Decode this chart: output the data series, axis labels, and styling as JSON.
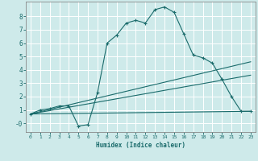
{
  "xlabel": "Humidex (Indice chaleur)",
  "background_color": "#ceeaea",
  "grid_color": "#ffffff",
  "line_color": "#1a6b6b",
  "xlim": [
    -0.5,
    23.5
  ],
  "ylim": [
    -0.65,
    9.1
  ],
  "yticks": [
    0,
    1,
    2,
    3,
    4,
    5,
    6,
    7,
    8
  ],
  "ytick_labels": [
    "-0",
    "1",
    "2",
    "3",
    "4",
    "5",
    "6",
    "7",
    "8"
  ],
  "xticks": [
    0,
    1,
    2,
    3,
    4,
    5,
    6,
    7,
    8,
    9,
    10,
    11,
    12,
    13,
    14,
    15,
    16,
    17,
    18,
    19,
    20,
    21,
    22,
    23
  ],
  "series": [
    {
      "x": [
        0,
        1,
        2,
        3,
        4,
        5,
        6,
        7,
        8,
        9,
        10,
        11,
        12,
        13,
        14,
        15,
        16,
        17,
        18,
        19,
        20,
        21,
        22,
        23
      ],
      "y": [
        0.7,
        1.0,
        1.1,
        1.3,
        1.3,
        -0.2,
        -0.1,
        2.3,
        6.0,
        6.6,
        7.5,
        7.7,
        7.5,
        8.5,
        8.7,
        8.3,
        6.7,
        5.1,
        4.9,
        4.5,
        3.3,
        2.0,
        0.9,
        0.9
      ],
      "marker": "+"
    },
    {
      "x": [
        0,
        23
      ],
      "y": [
        0.7,
        0.9
      ],
      "marker": null
    },
    {
      "x": [
        0,
        23
      ],
      "y": [
        0.7,
        4.6
      ],
      "marker": null
    },
    {
      "x": [
        0,
        23
      ],
      "y": [
        0.7,
        3.6
      ],
      "marker": null
    }
  ]
}
